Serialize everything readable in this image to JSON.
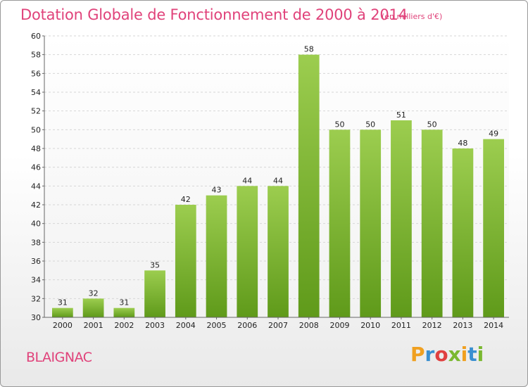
{
  "title": "Dotation Globale de Fonctionnement de 2000 à 2014",
  "subtitle": "(en milliers d'€)",
  "commune": "BLAIGNAC",
  "logo": {
    "letters": [
      "P",
      "r",
      "o",
      "x",
      "i",
      "t",
      "i"
    ],
    "colors": [
      "#f0a020",
      "#3a8fd0",
      "#e04040",
      "#7ab830",
      "#f0a020",
      "#3a8fd0",
      "#7ab830"
    ]
  },
  "chart_data": {
    "type": "bar",
    "title": "Dotation Globale de Fonctionnement de 2000 à 2014",
    "subtitle": "(en milliers d'€)",
    "categories": [
      "2000",
      "2001",
      "2002",
      "2003",
      "2004",
      "2005",
      "2006",
      "2007",
      "2008",
      "2009",
      "2010",
      "2011",
      "2012",
      "2013",
      "2014"
    ],
    "values": [
      31,
      32,
      31,
      35,
      42,
      43,
      44,
      44,
      58,
      50,
      50,
      51,
      50,
      48,
      49
    ],
    "ylim": [
      30,
      60
    ],
    "yticks": [
      30,
      32,
      34,
      36,
      38,
      40,
      42,
      44,
      46,
      48,
      50,
      52,
      54,
      56,
      58,
      60
    ],
    "grid": true,
    "bar_color_top": "#9ccd4f",
    "bar_color_bottom": "#5f9a1a"
  }
}
